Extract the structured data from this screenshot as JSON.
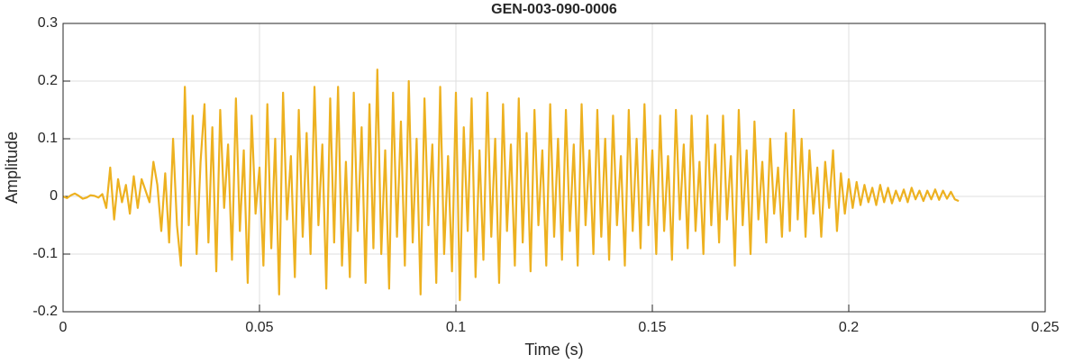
{
  "chart_data": {
    "type": "line",
    "title": "GEN-003-090-0006",
    "x_label": "Time (s)",
    "y_label": "Amplitude",
    "xlim": [
      0,
      0.25
    ],
    "xticks": [
      0,
      0.05,
      0.1,
      0.15,
      0.2,
      0.25
    ],
    "ylim": [
      -0.2,
      0.3
    ],
    "yticks": [
      -0.2,
      -0.1,
      0,
      0.1,
      0.2,
      0.3
    ],
    "grid": true,
    "x": [
      0,
      0.001,
      0.002,
      0.003,
      0.004,
      0.005,
      0.006,
      0.007,
      0.008,
      0.009,
      0.01,
      0.011,
      0.012,
      0.013,
      0.014,
      0.015,
      0.016,
      0.017,
      0.018,
      0.019,
      0.02,
      0.021,
      0.022,
      0.023,
      0.024,
      0.025,
      0.026,
      0.027,
      0.028,
      0.029,
      0.03,
      0.031,
      0.032,
      0.033,
      0.034,
      0.035,
      0.036,
      0.037,
      0.038,
      0.039,
      0.04,
      0.041,
      0.042,
      0.043,
      0.044,
      0.045,
      0.046,
      0.047,
      0.048,
      0.049,
      0.05,
      0.051,
      0.052,
      0.053,
      0.054,
      0.055,
      0.056,
      0.057,
      0.058,
      0.059,
      0.06,
      0.061,
      0.062,
      0.063,
      0.064,
      0.065,
      0.066,
      0.067,
      0.068,
      0.069,
      0.07,
      0.071,
      0.072,
      0.073,
      0.074,
      0.075,
      0.076,
      0.077,
      0.078,
      0.079,
      0.08,
      0.081,
      0.082,
      0.083,
      0.084,
      0.085,
      0.086,
      0.087,
      0.088,
      0.089,
      0.09,
      0.091,
      0.092,
      0.093,
      0.094,
      0.095,
      0.096,
      0.097,
      0.098,
      0.099,
      0.1,
      0.101,
      0.102,
      0.103,
      0.104,
      0.105,
      0.106,
      0.107,
      0.108,
      0.109,
      0.11,
      0.111,
      0.112,
      0.113,
      0.114,
      0.115,
      0.116,
      0.117,
      0.118,
      0.119,
      0.12,
      0.121,
      0.122,
      0.123,
      0.124,
      0.125,
      0.126,
      0.127,
      0.128,
      0.129,
      0.13,
      0.131,
      0.132,
      0.133,
      0.134,
      0.135,
      0.136,
      0.137,
      0.138,
      0.139,
      0.14,
      0.141,
      0.142,
      0.143,
      0.144,
      0.145,
      0.146,
      0.147,
      0.148,
      0.149,
      0.15,
      0.151,
      0.152,
      0.153,
      0.154,
      0.155,
      0.156,
      0.157,
      0.158,
      0.159,
      0.16,
      0.161,
      0.162,
      0.163,
      0.164,
      0.165,
      0.166,
      0.167,
      0.168,
      0.169,
      0.17,
      0.171,
      0.172,
      0.173,
      0.174,
      0.175,
      0.176,
      0.177,
      0.178,
      0.179,
      0.18,
      0.181,
      0.182,
      0.183,
      0.184,
      0.185,
      0.186,
      0.187,
      0.188,
      0.189,
      0.19,
      0.191,
      0.192,
      0.193,
      0.194,
      0.195,
      0.196,
      0.197,
      0.198,
      0.199,
      0.2,
      0.201,
      0.202,
      0.203,
      0.204,
      0.205,
      0.206,
      0.207,
      0.208,
      0.209,
      0.21,
      0.211,
      0.212,
      0.213,
      0.214,
      0.215,
      0.216,
      0.217,
      0.218,
      0.219,
      0.22,
      0.221,
      0.222,
      0.223,
      0.224,
      0.225,
      0.226,
      0.227,
      0.228
    ],
    "series": [
      {
        "color": "#EDB120",
        "values": [
          0,
          -0.003,
          0.002,
          0.005,
          0.001,
          -0.004,
          -0.002,
          0.002,
          0.001,
          -0.002,
          0.004,
          -0.02,
          0.05,
          -0.04,
          0.03,
          -0.01,
          0.02,
          -0.03,
          0.035,
          -0.02,
          0.03,
          0.01,
          -0.01,
          0.06,
          0.02,
          -0.06,
          0.04,
          -0.08,
          0.1,
          -0.05,
          -0.12,
          0.19,
          -0.05,
          0.14,
          -0.1,
          0.06,
          0.16,
          -0.08,
          0.12,
          -0.13,
          0.15,
          -0.02,
          0.09,
          -0.11,
          0.17,
          -0.06,
          0.08,
          -0.15,
          0.14,
          -0.03,
          0.05,
          -0.12,
          0.16,
          -0.09,
          0.1,
          -0.17,
          0.18,
          -0.04,
          0.07,
          -0.14,
          0.15,
          -0.07,
          0.11,
          -0.1,
          0.19,
          -0.05,
          0.09,
          -0.16,
          0.17,
          -0.08,
          0.19,
          -0.12,
          0.06,
          -0.14,
          0.18,
          -0.06,
          0.12,
          -0.15,
          0.16,
          -0.09,
          0.22,
          -0.1,
          0.08,
          -0.16,
          0.18,
          -0.07,
          0.13,
          -0.12,
          0.2,
          -0.08,
          0.1,
          -0.17,
          0.17,
          -0.05,
          0.09,
          -0.15,
          0.19,
          -0.1,
          0.07,
          -0.13,
          0.18,
          -0.18,
          0.12,
          -0.06,
          0.17,
          -0.14,
          0.08,
          -0.11,
          0.18,
          -0.07,
          0.1,
          -0.15,
          0.16,
          -0.06,
          0.09,
          -0.12,
          0.17,
          -0.08,
          0.11,
          -0.13,
          0.15,
          -0.05,
          0.08,
          -0.12,
          0.16,
          -0.07,
          0.1,
          -0.11,
          0.15,
          -0.06,
          0.09,
          -0.12,
          0.16,
          -0.05,
          0.08,
          -0.1,
          0.15,
          -0.07,
          0.1,
          -0.11,
          0.14,
          -0.05,
          0.07,
          -0.12,
          0.15,
          -0.06,
          0.1,
          -0.09,
          0.16,
          -0.05,
          0.08,
          -0.1,
          0.14,
          -0.06,
          0.07,
          -0.11,
          0.15,
          -0.04,
          0.09,
          -0.09,
          0.14,
          -0.06,
          0.06,
          -0.1,
          0.14,
          -0.05,
          0.09,
          -0.08,
          0.14,
          -0.04,
          0.07,
          -0.12,
          0.15,
          -0.05,
          0.08,
          -0.1,
          0.13,
          -0.04,
          0.06,
          -0.08,
          0.1,
          -0.03,
          0.05,
          -0.07,
          0.11,
          -0.06,
          0.15,
          -0.04,
          0.1,
          -0.07,
          0.08,
          -0.03,
          0.05,
          -0.07,
          0.06,
          -0.02,
          0.08,
          -0.06,
          0.04,
          -0.03,
          0.03,
          -0.02,
          0.025,
          -0.015,
          0.02,
          -0.01,
          0.015,
          -0.015,
          0.02,
          -0.01,
          0.015,
          -0.012,
          0.01,
          -0.008,
          0.012,
          -0.01,
          0.015,
          -0.005,
          0.01,
          -0.008,
          0.01,
          -0.005,
          0.012,
          -0.006,
          0.01,
          -0.004,
          0.008,
          -0.005,
          -0.008
        ]
      }
    ]
  }
}
